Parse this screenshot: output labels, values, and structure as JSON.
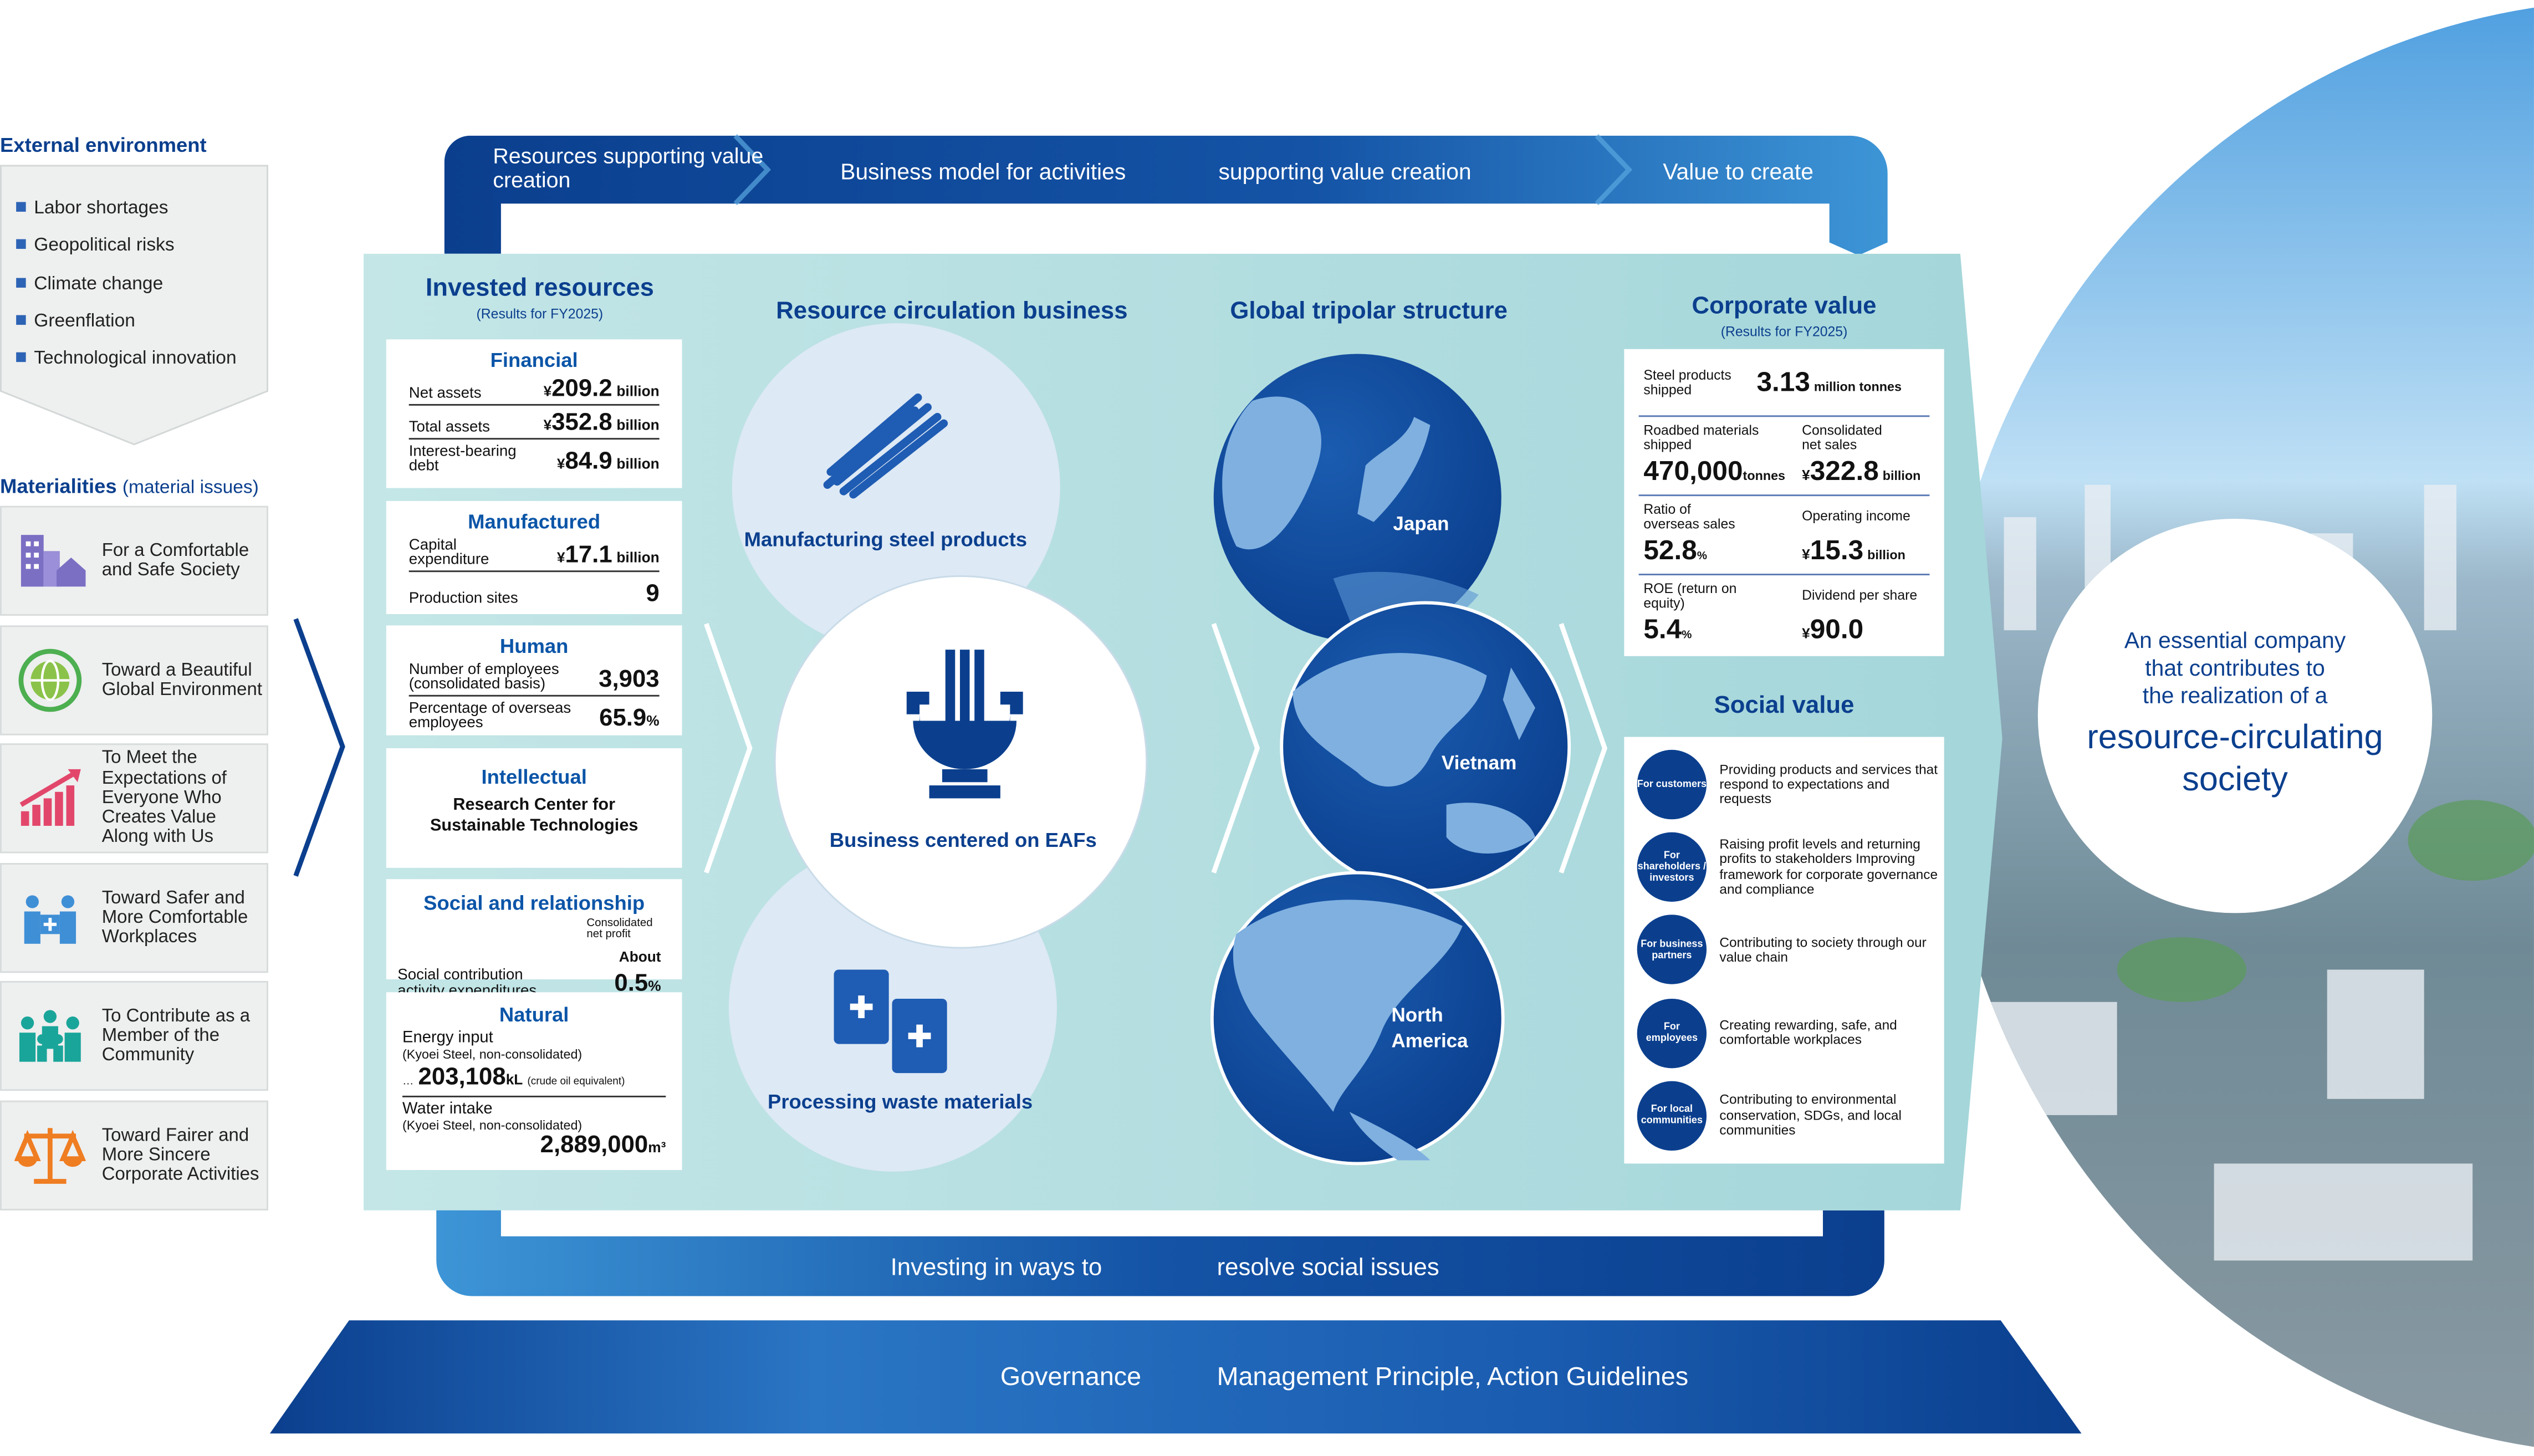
{
  "external": {
    "title": "External environment",
    "items": [
      "Labor shortages",
      "Geopolitical risks",
      "Climate change",
      "Greenflation",
      "Technological innovation"
    ]
  },
  "materialities": {
    "title": "Materialities",
    "subtitle": "(material issues)",
    "items": [
      {
        "label": "For a Comfortable and Safe Society",
        "icon": "buildings-icon",
        "color": "#7b6fc4"
      },
      {
        "label": "Toward a Beautiful Global Environment",
        "icon": "globe-icon",
        "color": "#4caf50"
      },
      {
        "label": "To Meet the Expectations of Everyone Who Creates Value Along with Us",
        "icon": "growth-chart-icon",
        "color": "#e2476b"
      },
      {
        "label": "Toward Safer and More Comfortable Workplaces",
        "icon": "workers-icon",
        "color": "#3f8fd6"
      },
      {
        "label": "To Contribute as a Member of the Community",
        "icon": "community-icon",
        "color": "#1aa59a"
      },
      {
        "label": "Toward Fairer and More Sincere Corporate Activities",
        "icon": "scales-icon",
        "color": "#ef7d22"
      }
    ]
  },
  "top_band": {
    "s1": "Resources supporting value creation",
    "s2": "Business model for activities",
    "s3": "supporting value creation",
    "s4": "Value to create"
  },
  "invested": {
    "title": "Invested resources",
    "subtitle": "(Results for FY2025)",
    "financial": {
      "title": "Financial",
      "rows": [
        {
          "label": "Net assets",
          "prefix": "¥",
          "value": "209.2",
          "unit": "billion"
        },
        {
          "label": "Total assets",
          "prefix": "¥",
          "value": "352.8",
          "unit": "billion"
        },
        {
          "label": "Interest-bearing debt",
          "prefix": "¥",
          "value": "84.9",
          "unit": "billion"
        }
      ]
    },
    "manufactured": {
      "title": "Manufactured",
      "rows": [
        {
          "label": "Capital expenditure",
          "prefix": "¥",
          "value": "17.1",
          "unit": "billion"
        },
        {
          "label": "Production sites",
          "value": "9"
        }
      ]
    },
    "human": {
      "title": "Human",
      "rows": [
        {
          "label": "Number of employees (consolidated basis)",
          "value": "3,903"
        },
        {
          "label": "Percentage of overseas employees",
          "value": "65.9",
          "unit": "%"
        }
      ]
    },
    "intellectual": {
      "title": "Intellectual",
      "text": "Research Center for Sustainable Technologies"
    },
    "social": {
      "title": "Social and relationship",
      "label": "Social contribution activity expenditures",
      "note": "Consolidated net profit",
      "prefix": "About",
      "value": "0.5",
      "unit": "%"
    },
    "natural": {
      "title": "Natural",
      "energy_label": "Energy input",
      "energy_note": "(Kyoei Steel, non-consolidated)",
      "energy_lead": "…",
      "energy_value": "203,108",
      "energy_unit": "kL",
      "energy_extra": "(crude oil equivalent)",
      "water_label": "Water intake",
      "water_note": "(Kyoei Steel, non-consolidated)",
      "water_value": "2,889,000",
      "water_unit": "m³"
    }
  },
  "business": {
    "title": "Resource circulation business",
    "top": "Manufacturing steel products",
    "center": "Business centered on EAFs",
    "bottom": "Processing waste materials"
  },
  "global": {
    "title": "Global tripolar structure",
    "regions": [
      "Japan",
      "Vietnam",
      "North America"
    ]
  },
  "corporate": {
    "title": "Corporate value",
    "subtitle": "(Results for FY2025)",
    "steel": {
      "label": "Steel products shipped",
      "value": "3.13",
      "unit": "million tonnes"
    },
    "roadbed": {
      "label": "Roadbed materials shipped",
      "value": "470,000",
      "unit": "tonnes"
    },
    "sales": {
      "label": "Consolidated net sales",
      "prefix": "¥",
      "value": "322.8",
      "unit": "billion"
    },
    "overseas": {
      "label": "Ratio of overseas sales",
      "value": "52.8",
      "unit": "%"
    },
    "income": {
      "label": "Operating income",
      "prefix": "¥",
      "value": "15.3",
      "unit": "billion"
    },
    "roe": {
      "label": "ROE (return on equity)",
      "value": "5.4",
      "unit": "%"
    },
    "dividend": {
      "label": "Dividend per share",
      "prefix": "¥",
      "value": "90.0"
    }
  },
  "social_value": {
    "title": "Social value",
    "items": [
      {
        "who": "For customers",
        "text": "Providing products and services that respond to expectations and requests"
      },
      {
        "who": "For shareholders / investors",
        "text": "Raising profit levels and returning profits to stakeholders Improving framework for corporate governance and compliance"
      },
      {
        "who": "For business partners",
        "text": "Contributing to society through our value chain"
      },
      {
        "who": "For employees",
        "text": "Creating rewarding, safe, and comfortable workplaces"
      },
      {
        "who": "For local communities",
        "text": "Contributing to environmental conservation, SDGs, and local communities"
      }
    ]
  },
  "bottom_band": {
    "s1": "Investing in ways to",
    "s2": "resolve social issues"
  },
  "governance": {
    "s1": "Governance",
    "s2": "Management Principle, Action Guidelines"
  },
  "vision": {
    "l1": "An essential company",
    "l2": "that contributes to",
    "l3": "the realization of a",
    "big1": "resource-circulating",
    "big2": "society"
  },
  "colors": {
    "navy": "#0b3f8e",
    "teal": "#a9d9dc",
    "blue": "#3a8fd4"
  }
}
